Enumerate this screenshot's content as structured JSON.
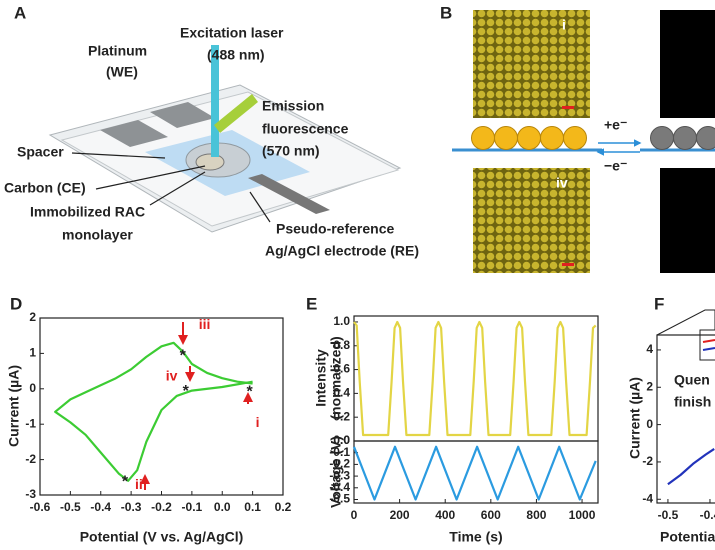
{
  "panel_a": {
    "label": "A",
    "excitation": [
      "Excitation laser",
      "(488 nm)"
    ],
    "platinum": [
      "Platinum",
      "(WE)"
    ],
    "emission": [
      "Emission",
      "fluorescence",
      "(570 nm)"
    ],
    "spacer": "Spacer",
    "carbon": "Carbon (CE)",
    "monolayer": [
      "Immobilized RAC",
      "monolayer"
    ],
    "reference": [
      "Pseudo-reference",
      "Ag/AgCl electrode (RE)"
    ]
  },
  "panel_b": {
    "label": "B",
    "image_labels": [
      "i",
      "iv"
    ],
    "reduction": "+e⁻",
    "oxidation": "−e⁻"
  },
  "chart_data": [
    {
      "type": "line",
      "label": "D",
      "xlabel": "Potential (V vs. Ag/AgCl)",
      "ylabel": "Current (µA)",
      "color": "#3ccc33",
      "x": [
        0.1,
        0.0,
        -0.1,
        -0.15,
        -0.2,
        -0.25,
        -0.28,
        -0.31,
        -0.34,
        -0.4,
        -0.45,
        -0.5,
        -0.55,
        -0.5,
        -0.45,
        -0.4,
        -0.35,
        -0.3,
        -0.25,
        -0.2,
        -0.16,
        -0.13,
        -0.1,
        -0.05,
        0.0,
        0.05,
        0.1
      ],
      "values": [
        0.2,
        0.05,
        -0.05,
        -0.2,
        -0.6,
        -1.5,
        -2.3,
        -2.6,
        -2.4,
        -1.8,
        -1.3,
        -0.95,
        -0.65,
        -0.3,
        -0.1,
        0.1,
        0.3,
        0.55,
        0.9,
        1.2,
        1.3,
        1.05,
        0.7,
        0.45,
        0.3,
        0.2,
        0.15
      ],
      "xlim": [
        -0.6,
        0.2
      ],
      "xticks": [
        -0.6,
        -0.5,
        -0.4,
        -0.3,
        -0.2,
        -0.1,
        {
          "value": 0,
          "label": "0.0"
        },
        0.1,
        0.2
      ],
      "ylim": [
        -3,
        2
      ],
      "yticks": [
        -3,
        -2,
        -1,
        0,
        1,
        2
      ],
      "points": [
        {
          "label": "i",
          "symbol": "*",
          "x": 0.09,
          "y": -0.02
        },
        {
          "label": "ii",
          "symbol": "*",
          "x": -0.32,
          "y": -2.55
        },
        {
          "label": "iii",
          "symbol": "*",
          "x": -0.13,
          "y": 1.0
        },
        {
          "label": "iv",
          "symbol": "*",
          "x": -0.12,
          "y": 0.0
        }
      ]
    },
    {
      "type": "line",
      "label": "E",
      "ylabel": [
        "Intensity",
        "(normalized)"
      ],
      "color": "#e3d545",
      "x": [
        0,
        12,
        25,
        40,
        150,
        165,
        178,
        190,
        202,
        215,
        230,
        330,
        345,
        358,
        370,
        382,
        395,
        410,
        510,
        525,
        538,
        550,
        562,
        575,
        590,
        685,
        700,
        713,
        725,
        737,
        750,
        765,
        865,
        880,
        893,
        905,
        917,
        930,
        945,
        1020,
        1035,
        1048,
        1060
      ],
      "values": [
        1.0,
        0.97,
        0.5,
        0.05,
        0.05,
        0.5,
        0.95,
        1.0,
        0.95,
        0.5,
        0.05,
        0.05,
        0.5,
        0.95,
        1.0,
        0.95,
        0.5,
        0.05,
        0.05,
        0.5,
        0.95,
        1.0,
        0.95,
        0.5,
        0.05,
        0.05,
        0.5,
        0.95,
        1.0,
        0.95,
        0.5,
        0.05,
        0.05,
        0.5,
        0.95,
        1.0,
        0.95,
        0.5,
        0.05,
        0.05,
        0.5,
        0.95,
        0.97
      ],
      "xlim": [
        0,
        1070
      ],
      "ylim": [
        0,
        1.05
      ],
      "yticks": [
        {
          "value": 0,
          "label": "0.0"
        },
        0.2,
        0.4,
        0.6,
        0.8,
        {
          "value": 1,
          "label": "1.0"
        }
      ]
    },
    {
      "type": "line",
      "xlabel": "Time (s)",
      "ylabel": "Voltage (V)",
      "color": "#2b9be0",
      "x": [
        0,
        90,
        180,
        270,
        360,
        450,
        540,
        630,
        720,
        810,
        900,
        990,
        1060
      ],
      "values": [
        -0.05,
        -0.5,
        -0.05,
        -0.5,
        -0.05,
        -0.5,
        -0.05,
        -0.5,
        -0.05,
        -0.5,
        -0.05,
        -0.5,
        -0.17
      ],
      "xlim": [
        0,
        1070
      ],
      "xticks": [
        0,
        200,
        400,
        600,
        800,
        1000
      ],
      "ylim": [
        -0.53,
        0
      ],
      "yticks": [
        {
          "value": 0,
          "label": "0.0"
        },
        -0.1,
        -0.2,
        -0.3,
        -0.4,
        -0.5
      ]
    },
    {
      "type": "line",
      "label": "F",
      "ylabel": "Current (µA)",
      "xlabel": "Potentia",
      "annotation": [
        "Quen",
        "finish"
      ],
      "color": "#2233bb",
      "x": [
        -0.5,
        -0.47,
        -0.44,
        -0.41,
        -0.39
      ],
      "values": [
        -3.2,
        -2.7,
        -2.1,
        -1.6,
        -1.3
      ],
      "xlim": [
        -0.526,
        -0.388
      ],
      "xticks": [
        -0.5,
        -0.4
      ],
      "ylim": [
        -4.2,
        4.8
      ],
      "yticks": [
        -4,
        -2,
        0,
        2,
        4
      ]
    }
  ]
}
